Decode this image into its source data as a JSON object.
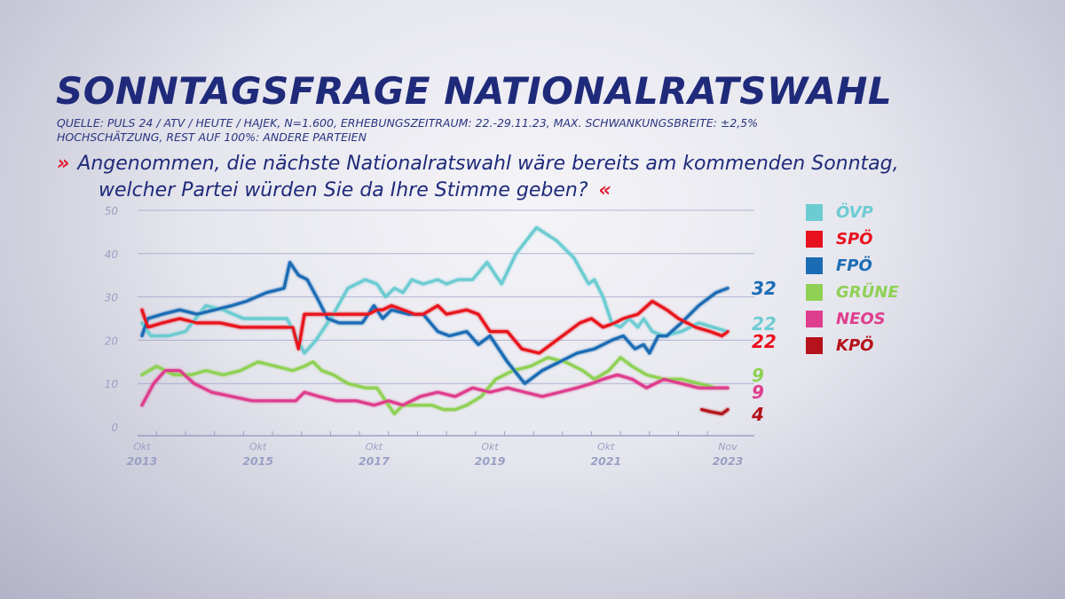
{
  "header": {
    "title": "SONNTAGSFRAGE NATIONALRATSWAHL",
    "source_line1": "QUELLE: PULS 24 / ATV / HEUTE / HAJEK, N=1.600, ERHEBUNGSZEITRAUM: 22.-29.11.23, MAX. SCHWANKUNGSBREITE: ±2,5%",
    "source_line2": "HOCHSCHÄTZUNG, REST AUF 100%: ANDERE PARTEIEN",
    "question_line1": "Angenommen, die nächste Nationalratswahl wäre bereits am kommenden Sonntag,",
    "question_line2": "welcher Partei würden Sie da Ihre Stimme geben?",
    "chevron_open": "»",
    "chevron_close": "«"
  },
  "chart_data": {
    "type": "line",
    "title": "",
    "xlabel": "",
    "ylabel": "",
    "ylim": [
      0,
      50
    ],
    "yticks": [
      "0",
      "10",
      "20",
      "30",
      "40",
      "50"
    ],
    "grid": true,
    "legend_position": "right",
    "x_range": [
      2013.75,
      2023.85
    ],
    "x_ticks": [
      {
        "x": 2013.75,
        "month": "Okt",
        "year": "2013"
      },
      {
        "x": 2015.75,
        "month": "Okt",
        "year": "2015"
      },
      {
        "x": 2017.75,
        "month": "Okt",
        "year": "2017"
      },
      {
        "x": 2019.75,
        "month": "Okt",
        "year": "2019"
      },
      {
        "x": 2021.75,
        "month": "Okt",
        "year": "2021"
      },
      {
        "x": 2023.85,
        "month": "Nov",
        "year": "2023"
      }
    ],
    "series": [
      {
        "name": "ÖVP",
        "color": "#6cccd2",
        "final_label": "22",
        "points": [
          [
            2013.75,
            24
          ],
          [
            2013.9,
            21
          ],
          [
            2014.2,
            21
          ],
          [
            2014.5,
            22
          ],
          [
            2014.85,
            28
          ],
          [
            2015.15,
            27
          ],
          [
            2015.5,
            25
          ],
          [
            2015.9,
            25
          ],
          [
            2016.25,
            25
          ],
          [
            2016.55,
            17
          ],
          [
            2016.75,
            20
          ],
          [
            2017.05,
            26
          ],
          [
            2017.3,
            32
          ],
          [
            2017.6,
            34
          ],
          [
            2017.8,
            33
          ],
          [
            2017.95,
            30
          ],
          [
            2018.1,
            32
          ],
          [
            2018.25,
            31
          ],
          [
            2018.4,
            34
          ],
          [
            2018.6,
            33
          ],
          [
            2018.85,
            34
          ],
          [
            2019.0,
            33
          ],
          [
            2019.2,
            34
          ],
          [
            2019.45,
            34
          ],
          [
            2019.7,
            38
          ],
          [
            2019.95,
            33
          ],
          [
            2020.2,
            40
          ],
          [
            2020.55,
            46
          ],
          [
            2020.9,
            43
          ],
          [
            2021.2,
            39
          ],
          [
            2021.45,
            33
          ],
          [
            2021.55,
            34
          ],
          [
            2021.7,
            30
          ],
          [
            2021.85,
            24
          ],
          [
            2022.0,
            23
          ],
          [
            2022.15,
            25
          ],
          [
            2022.3,
            23
          ],
          [
            2022.4,
            25
          ],
          [
            2022.55,
            22
          ],
          [
            2022.75,
            21
          ],
          [
            2023.05,
            22
          ],
          [
            2023.35,
            24
          ],
          [
            2023.6,
            23
          ],
          [
            2023.85,
            22
          ]
        ]
      },
      {
        "name": "SPÖ",
        "color": "#e8121e",
        "final_label": "22",
        "points": [
          [
            2013.75,
            27
          ],
          [
            2013.85,
            23
          ],
          [
            2014.1,
            24
          ],
          [
            2014.4,
            25
          ],
          [
            2014.7,
            24
          ],
          [
            2015.1,
            24
          ],
          [
            2015.45,
            23
          ],
          [
            2015.9,
            23
          ],
          [
            2016.35,
            23
          ],
          [
            2016.45,
            18
          ],
          [
            2016.55,
            26
          ],
          [
            2016.75,
            26
          ],
          [
            2017.1,
            26
          ],
          [
            2017.45,
            26
          ],
          [
            2017.65,
            26
          ],
          [
            2017.8,
            27
          ],
          [
            2017.9,
            27
          ],
          [
            2018.05,
            28
          ],
          [
            2018.25,
            27
          ],
          [
            2018.45,
            26
          ],
          [
            2018.6,
            26
          ],
          [
            2018.85,
            28
          ],
          [
            2019.0,
            26
          ],
          [
            2019.35,
            27
          ],
          [
            2019.55,
            26
          ],
          [
            2019.75,
            22
          ],
          [
            2020.05,
            22
          ],
          [
            2020.3,
            18
          ],
          [
            2020.6,
            17
          ],
          [
            2020.9,
            20
          ],
          [
            2021.3,
            24
          ],
          [
            2021.5,
            25
          ],
          [
            2021.7,
            23
          ],
          [
            2021.9,
            24
          ],
          [
            2022.05,
            25
          ],
          [
            2022.3,
            26
          ],
          [
            2022.55,
            29
          ],
          [
            2022.8,
            27
          ],
          [
            2023.0,
            25
          ],
          [
            2023.3,
            23
          ],
          [
            2023.55,
            22
          ],
          [
            2023.75,
            21
          ],
          [
            2023.85,
            22
          ]
        ]
      },
      {
        "name": "FPÖ",
        "color": "#1b6cb4",
        "final_label": "32",
        "points": [
          [
            2013.75,
            21
          ],
          [
            2013.85,
            25
          ],
          [
            2014.1,
            26
          ],
          [
            2014.4,
            27
          ],
          [
            2014.7,
            26
          ],
          [
            2015.0,
            27
          ],
          [
            2015.3,
            28
          ],
          [
            2015.55,
            29
          ],
          [
            2015.9,
            31
          ],
          [
            2016.2,
            32
          ],
          [
            2016.3,
            38
          ],
          [
            2016.45,
            35
          ],
          [
            2016.6,
            34
          ],
          [
            2016.8,
            29
          ],
          [
            2016.95,
            25
          ],
          [
            2017.15,
            24
          ],
          [
            2017.55,
            24
          ],
          [
            2017.75,
            28
          ],
          [
            2017.9,
            25
          ],
          [
            2018.05,
            27
          ],
          [
            2018.35,
            26
          ],
          [
            2018.6,
            26
          ],
          [
            2018.85,
            22
          ],
          [
            2019.05,
            21
          ],
          [
            2019.35,
            22
          ],
          [
            2019.55,
            19
          ],
          [
            2019.75,
            21
          ],
          [
            2020.05,
            15
          ],
          [
            2020.35,
            10
          ],
          [
            2020.65,
            13
          ],
          [
            2020.95,
            15
          ],
          [
            2021.25,
            17
          ],
          [
            2021.55,
            18
          ],
          [
            2021.85,
            20
          ],
          [
            2022.05,
            21
          ],
          [
            2022.25,
            18
          ],
          [
            2022.4,
            19
          ],
          [
            2022.5,
            17
          ],
          [
            2022.65,
            21
          ],
          [
            2022.8,
            21
          ],
          [
            2023.05,
            24
          ],
          [
            2023.35,
            28
          ],
          [
            2023.65,
            31
          ],
          [
            2023.85,
            32
          ]
        ]
      },
      {
        "name": "GRÜNE",
        "color": "#8fd155",
        "final_label": "9",
        "points": [
          [
            2013.75,
            12
          ],
          [
            2014.0,
            14
          ],
          [
            2014.3,
            12
          ],
          [
            2014.6,
            12
          ],
          [
            2014.85,
            13
          ],
          [
            2015.15,
            12
          ],
          [
            2015.45,
            13
          ],
          [
            2015.75,
            15
          ],
          [
            2016.05,
            14
          ],
          [
            2016.35,
            13
          ],
          [
            2016.55,
            14
          ],
          [
            2016.7,
            15
          ],
          [
            2016.85,
            13
          ],
          [
            2017.05,
            12
          ],
          [
            2017.3,
            10
          ],
          [
            2017.6,
            9
          ],
          [
            2017.8,
            9
          ],
          [
            2017.95,
            6
          ],
          [
            2018.1,
            3
          ],
          [
            2018.25,
            5
          ],
          [
            2018.5,
            5
          ],
          [
            2018.75,
            5
          ],
          [
            2018.95,
            4
          ],
          [
            2019.15,
            4
          ],
          [
            2019.35,
            5
          ],
          [
            2019.6,
            7
          ],
          [
            2019.85,
            11
          ],
          [
            2020.15,
            13
          ],
          [
            2020.45,
            14
          ],
          [
            2020.75,
            16
          ],
          [
            2021.05,
            15
          ],
          [
            2021.35,
            13
          ],
          [
            2021.55,
            11
          ],
          [
            2021.8,
            13
          ],
          [
            2022.0,
            16
          ],
          [
            2022.2,
            14
          ],
          [
            2022.45,
            12
          ],
          [
            2022.75,
            11
          ],
          [
            2023.05,
            11
          ],
          [
            2023.35,
            10
          ],
          [
            2023.65,
            9
          ],
          [
            2023.85,
            9
          ]
        ]
      },
      {
        "name": "NEOS",
        "color": "#df3e8e",
        "final_label": "9",
        "points": [
          [
            2013.75,
            5
          ],
          [
            2013.95,
            10
          ],
          [
            2014.15,
            13
          ],
          [
            2014.4,
            13
          ],
          [
            2014.65,
            10
          ],
          [
            2014.95,
            8
          ],
          [
            2015.3,
            7
          ],
          [
            2015.65,
            6
          ],
          [
            2016.05,
            6
          ],
          [
            2016.4,
            6
          ],
          [
            2016.55,
            8
          ],
          [
            2016.8,
            7
          ],
          [
            2017.1,
            6
          ],
          [
            2017.45,
            6
          ],
          [
            2017.75,
            5
          ],
          [
            2018.0,
            6
          ],
          [
            2018.25,
            5
          ],
          [
            2018.55,
            7
          ],
          [
            2018.85,
            8
          ],
          [
            2019.15,
            7
          ],
          [
            2019.45,
            9
          ],
          [
            2019.75,
            8
          ],
          [
            2020.05,
            9
          ],
          [
            2020.35,
            8
          ],
          [
            2020.65,
            7
          ],
          [
            2020.95,
            8
          ],
          [
            2021.25,
            9
          ],
          [
            2021.5,
            10
          ],
          [
            2021.7,
            11
          ],
          [
            2021.95,
            12
          ],
          [
            2022.2,
            11
          ],
          [
            2022.45,
            9
          ],
          [
            2022.75,
            11
          ],
          [
            2023.05,
            10
          ],
          [
            2023.35,
            9
          ],
          [
            2023.65,
            9
          ],
          [
            2023.85,
            9
          ]
        ]
      },
      {
        "name": "KPÖ",
        "color": "#b5121b",
        "final_label": "4",
        "points": [
          [
            2023.4,
            4
          ],
          [
            2023.55,
            3.5
          ],
          [
            2023.75,
            3
          ],
          [
            2023.85,
            4
          ]
        ]
      }
    ]
  }
}
